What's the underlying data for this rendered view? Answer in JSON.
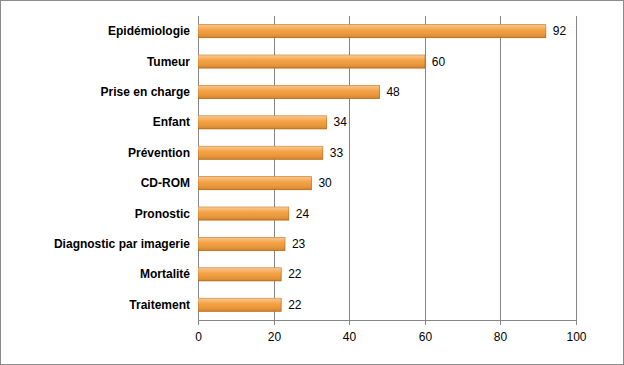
{
  "chart_data": {
    "type": "bar",
    "orientation": "horizontal",
    "categories": [
      "Epidémiologie",
      "Tumeur",
      "Prise en charge",
      "Enfant",
      "Prévention",
      "CD-ROM",
      "Pronostic",
      "Diagnostic par imagerie",
      "Mortalité",
      "Traitement"
    ],
    "values": [
      92,
      60,
      48,
      34,
      33,
      30,
      24,
      23,
      22,
      22
    ],
    "color": "#f39a36",
    "xlim": [
      0,
      100
    ],
    "xticks": [
      0,
      20,
      40,
      60,
      80,
      100
    ],
    "grid": true,
    "data_labels": true
  }
}
